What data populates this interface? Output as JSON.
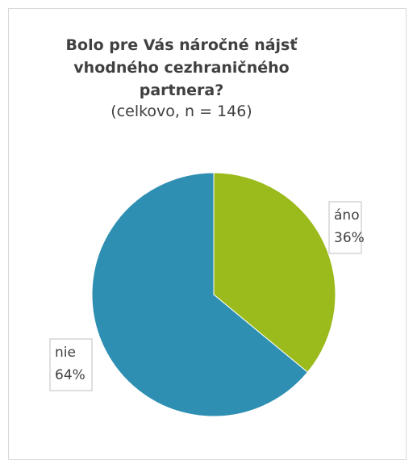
{
  "chart_data": {
    "type": "pie",
    "title": "Bolo pre Vás náročné nájsť vhodného cezhraničného partnera?",
    "subtitle": "(celkovo, n = 146)",
    "categories": [
      "áno",
      "nie"
    ],
    "values": [
      36,
      64
    ],
    "value_labels": [
      "36%",
      "64%"
    ],
    "colors": [
      "#9bbb1c",
      "#2e8fb2"
    ]
  }
}
